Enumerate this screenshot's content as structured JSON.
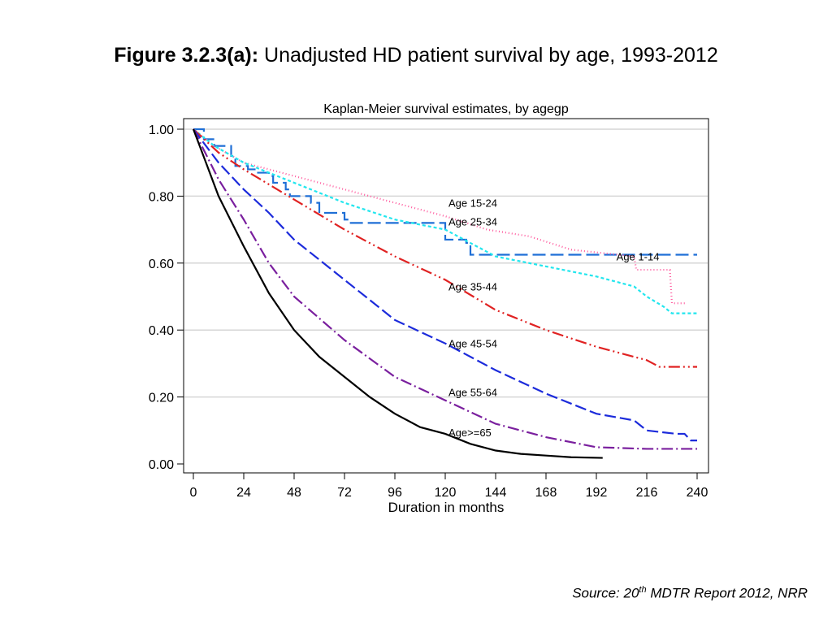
{
  "figure": {
    "title_lead": "Figure 3.2.3(a):",
    "title_rest": " Unadjusted HD patient survival by age, 1993-2012"
  },
  "source": {
    "prefix": "Source: 20",
    "sup": "th",
    "suffix": " MDTR Report 2012, NRR"
  },
  "chart_data": {
    "type": "line",
    "title": "Kaplan-Meier survival estimates, by agegp",
    "xlabel": "Duration in months",
    "ylabel": "",
    "xlim": [
      0,
      240
    ],
    "ylim": [
      0,
      1
    ],
    "xticks": [
      0,
      24,
      48,
      72,
      96,
      120,
      144,
      168,
      192,
      216,
      240
    ],
    "xtick_labels": [
      "0",
      "24",
      "48",
      "72",
      "96",
      "120",
      "144",
      "168",
      "192",
      "216",
      "240"
    ],
    "yticks": [
      0,
      0.2,
      0.4,
      0.6,
      0.8,
      1.0
    ],
    "ytick_labels": [
      "0.00",
      "0.20",
      "0.40",
      "0.60",
      "0.80",
      "1.00"
    ],
    "grid": true,
    "legend": "inline labels",
    "series": [
      {
        "name": "Age 1-14",
        "color": "#1f6fd6",
        "dash": "16 6",
        "step": true,
        "x": [
          0,
          5,
          10,
          18,
          20,
          26,
          30,
          36,
          38,
          44,
          46,
          56,
          60,
          72,
          74,
          80,
          90,
          100,
          110,
          120,
          130,
          132,
          160,
          200,
          240
        ],
        "y": [
          1.0,
          0.97,
          0.95,
          0.92,
          0.89,
          0.88,
          0.87,
          0.86,
          0.84,
          0.82,
          0.8,
          0.78,
          0.75,
          0.73,
          0.72,
          0.72,
          0.72,
          0.72,
          0.72,
          0.67,
          0.66,
          0.625,
          0.625,
          0.625,
          0.625
        ],
        "label_x": 200,
        "label_y": 0.62
      },
      {
        "name": "Age 15-24",
        "color": "#ff5a9e",
        "dash": "1 3",
        "step": false,
        "x": [
          0,
          10,
          24,
          48,
          72,
          96,
          120,
          140,
          160,
          180,
          195,
          210,
          211,
          220,
          227,
          228,
          235
        ],
        "y": [
          1.0,
          0.95,
          0.9,
          0.86,
          0.82,
          0.78,
          0.74,
          0.7,
          0.68,
          0.64,
          0.63,
          0.62,
          0.58,
          0.58,
          0.58,
          0.48,
          0.48
        ],
        "label_x": 120,
        "label_y": 0.78
      },
      {
        "name": "Age 25-34",
        "color": "#22e6ee",
        "dash": "4 3",
        "step": false,
        "x": [
          0,
          10,
          24,
          48,
          72,
          96,
          120,
          132,
          144,
          168,
          192,
          210,
          216,
          224,
          228,
          240
        ],
        "y": [
          1.0,
          0.95,
          0.9,
          0.84,
          0.78,
          0.73,
          0.7,
          0.66,
          0.62,
          0.59,
          0.56,
          0.53,
          0.5,
          0.47,
          0.45,
          0.45
        ],
        "label_x": 120,
        "label_y": 0.725
      },
      {
        "name": "Age 35-44",
        "color": "#e02222",
        "dash": "14 4 2 4 2 4",
        "step": false,
        "x": [
          0,
          12,
          24,
          48,
          72,
          96,
          120,
          144,
          168,
          192,
          210,
          216,
          222,
          240
        ],
        "y": [
          1.0,
          0.93,
          0.88,
          0.79,
          0.7,
          0.62,
          0.55,
          0.46,
          0.4,
          0.35,
          0.32,
          0.31,
          0.29,
          0.29
        ],
        "label_x": 120,
        "label_y": 0.53
      },
      {
        "name": "Age 45-54",
        "color": "#1c2bdb",
        "dash": "14 5",
        "step": false,
        "x": [
          0,
          12,
          24,
          36,
          48,
          72,
          96,
          120,
          144,
          168,
          192,
          210,
          216,
          230,
          234,
          237,
          240
        ],
        "y": [
          1.0,
          0.9,
          0.82,
          0.75,
          0.67,
          0.55,
          0.43,
          0.36,
          0.28,
          0.21,
          0.15,
          0.13,
          0.1,
          0.09,
          0.09,
          0.07,
          0.07
        ],
        "label_x": 120,
        "label_y": 0.36
      },
      {
        "name": "Age 55-64",
        "color": "#7a1f9e",
        "dash": "14 4 2 4",
        "step": false,
        "x": [
          0,
          12,
          24,
          36,
          48,
          72,
          96,
          120,
          144,
          168,
          192,
          216,
          240
        ],
        "y": [
          1.0,
          0.85,
          0.73,
          0.6,
          0.5,
          0.37,
          0.26,
          0.19,
          0.12,
          0.08,
          0.05,
          0.045,
          0.045
        ],
        "label_x": 120,
        "label_y": 0.215
      },
      {
        "name": "Age>=65",
        "color": "#000000",
        "dash": "",
        "step": false,
        "x": [
          0,
          12,
          24,
          36,
          48,
          60,
          72,
          84,
          96,
          108,
          120,
          132,
          144,
          156,
          168,
          180,
          195
        ],
        "y": [
          1.0,
          0.8,
          0.65,
          0.51,
          0.4,
          0.32,
          0.26,
          0.2,
          0.15,
          0.11,
          0.09,
          0.06,
          0.04,
          0.03,
          0.025,
          0.02,
          0.018
        ],
        "label_x": 120,
        "label_y": 0.095
      }
    ]
  }
}
